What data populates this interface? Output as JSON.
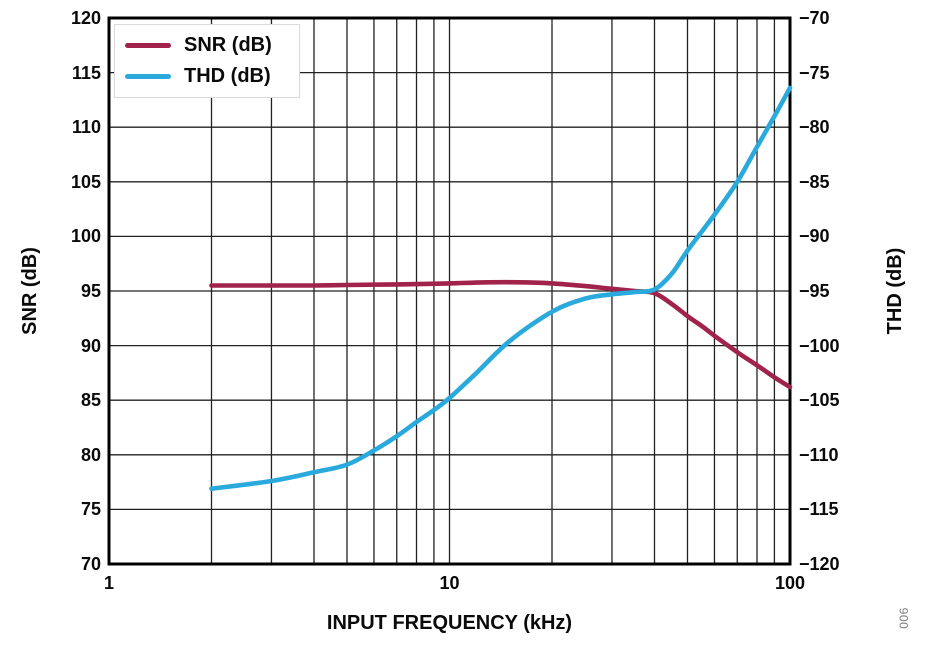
{
  "figure": {
    "annotation": "006",
    "colors": {
      "grid": "#222222",
      "frame": "#000000",
      "background": "#ffffff",
      "annotation_gray": "#7b7b7b"
    }
  },
  "chart_data": {
    "type": "line",
    "x_scale": "log",
    "grid": "on",
    "legend_position": "top-left",
    "xlabel": "INPUT FREQUENCY (kHz)",
    "xlim": [
      1,
      100
    ],
    "x_major_ticks": [
      1,
      10,
      100
    ],
    "x_tick_labels": [
      "1",
      "10",
      "100"
    ],
    "left_axis": {
      "label": "SNR (dB)",
      "range": [
        70,
        120
      ],
      "tick_step": 5
    },
    "right_axis": {
      "label": "THD (dB)",
      "range": [
        -120,
        -70
      ],
      "tick_step": 5
    },
    "series": [
      {
        "name": "SNR (dB)",
        "axis": "left",
        "color": "#A1234C",
        "points": [
          [
            2,
            95.5
          ],
          [
            3,
            95.5
          ],
          [
            4,
            95.5
          ],
          [
            5,
            95.55
          ],
          [
            7,
            95.6
          ],
          [
            10,
            95.7
          ],
          [
            13,
            95.8
          ],
          [
            16,
            95.8
          ],
          [
            20,
            95.7
          ],
          [
            25,
            95.45
          ],
          [
            30,
            95.2
          ],
          [
            35,
            95.0
          ],
          [
            40,
            94.8
          ],
          [
            45,
            93.8
          ],
          [
            50,
            92.7
          ],
          [
            55,
            91.8
          ],
          [
            60,
            90.9
          ],
          [
            70,
            89.4
          ],
          [
            80,
            88.2
          ],
          [
            90,
            87.1
          ],
          [
            100,
            86.2
          ]
        ]
      },
      {
        "name": "THD (dB)",
        "axis": "right",
        "color": "#29A9DC",
        "points": [
          [
            2,
            -113.1
          ],
          [
            3,
            -112.4
          ],
          [
            4,
            -111.6
          ],
          [
            5,
            -110.9
          ],
          [
            6,
            -109.6
          ],
          [
            7,
            -108.3
          ],
          [
            8,
            -107.0
          ],
          [
            9,
            -105.9
          ],
          [
            10,
            -104.8
          ],
          [
            12,
            -102.5
          ],
          [
            15,
            -99.6
          ],
          [
            20,
            -96.9
          ],
          [
            25,
            -95.7
          ],
          [
            30,
            -95.3
          ],
          [
            35,
            -95.1
          ],
          [
            40,
            -94.85
          ],
          [
            45,
            -93.4
          ],
          [
            50,
            -91.3
          ],
          [
            60,
            -88.0
          ],
          [
            70,
            -85.0
          ],
          [
            80,
            -81.8
          ],
          [
            90,
            -79.0
          ],
          [
            100,
            -76.4
          ]
        ]
      }
    ]
  }
}
